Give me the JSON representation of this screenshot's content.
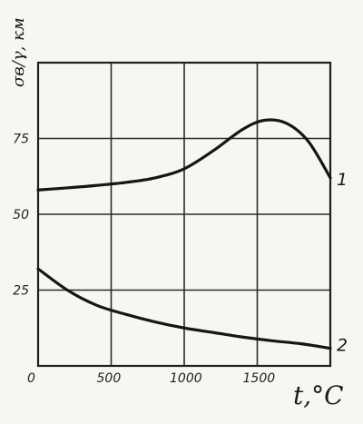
{
  "chart_data": {
    "type": "line",
    "title": "",
    "xlabel": "t,°C",
    "ylabel": "σв/γ, км",
    "xlim": [
      0,
      2000
    ],
    "ylim": [
      0,
      100
    ],
    "x_ticks": [
      0,
      500,
      1000,
      1500
    ],
    "y_ticks": [
      25,
      50,
      75
    ],
    "grid": true,
    "series": [
      {
        "name": "1",
        "x": [
          0,
          200,
          400,
          600,
          800,
          1000,
          1200,
          1400,
          1550,
          1700,
          1850,
          2000
        ],
        "y": [
          58,
          58.7,
          59.5,
          60.5,
          62,
          65,
          71,
          78,
          81,
          80,
          74,
          62
        ]
      },
      {
        "name": "2",
        "x": [
          0,
          200,
          400,
          600,
          800,
          1000,
          1200,
          1400,
          1600,
          1800,
          2000
        ],
        "y": [
          32,
          25,
          20,
          17,
          14.5,
          12.5,
          11,
          9.5,
          8.3,
          7.3,
          5.8
        ]
      }
    ]
  }
}
